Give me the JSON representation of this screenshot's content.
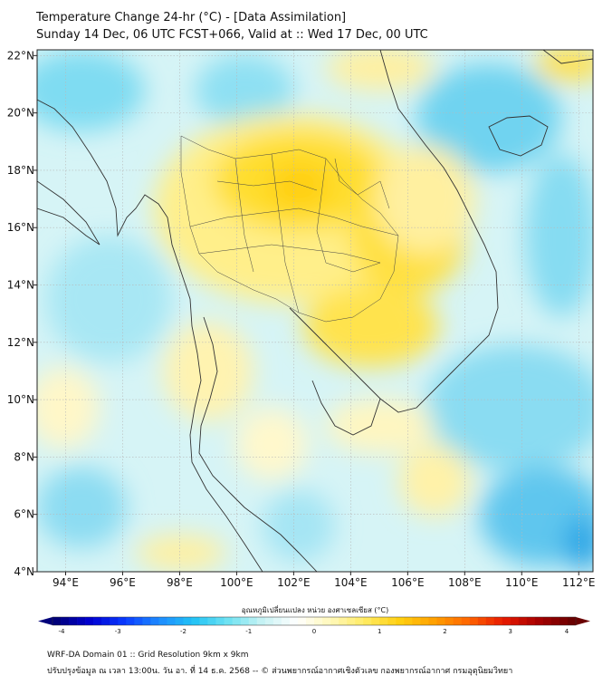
{
  "header": {
    "title": "Temperature Change 24-hr (°C) - [Data Assimilation]",
    "subtitle": "Sunday 14 Dec, 06 UTC FCST+066, Valid at :: Wed 17 Dec, 00 UTC"
  },
  "axes": {
    "lon_ticks": [
      "94°E",
      "96°E",
      "98°E",
      "100°E",
      "102°E",
      "104°E",
      "106°E",
      "108°E",
      "110°E",
      "112°E"
    ],
    "lat_ticks": [
      "22°N",
      "20°N",
      "18°N",
      "16°N",
      "14°N",
      "12°N",
      "10°N",
      "8°N",
      "6°N",
      "4°N"
    ],
    "lon_range": [
      93,
      112.5
    ],
    "lat_range": [
      4,
      22.2
    ]
  },
  "colorbar": {
    "title": "อุณหภูมิเปลี่ยนแปลง หน่วย องศาเซลเซียส (°C)",
    "ticks": [
      "-4",
      "-3",
      "-2",
      "-1",
      "0",
      "1",
      "2",
      "3",
      "4"
    ],
    "range": [
      -4,
      4
    ],
    "colors": [
      "#00007a",
      "#0000d2",
      "#0a3cff",
      "#1e8cff",
      "#22c3f5",
      "#6fe2f2",
      "#c8f3f4",
      "#ffffff",
      "#fff8b8",
      "#ffea60",
      "#ffcf10",
      "#ff9f00",
      "#ff6400",
      "#e81a00",
      "#a80000",
      "#6a0000"
    ]
  },
  "footer": {
    "line1": "WRF-DA Domain 01 :: Grid Resolution 9km x 9km",
    "line2": "ปรับปรุงข้อมูล ณ เวลา 13:00น. วัน อา. ที่ 14 ธ.ค. 2568 -- © ส่วนพยากรณ์อากาศเชิงตัวเลข กองพยากรณ์อากาศ กรมอุตุนิยมวิทยา"
  }
}
